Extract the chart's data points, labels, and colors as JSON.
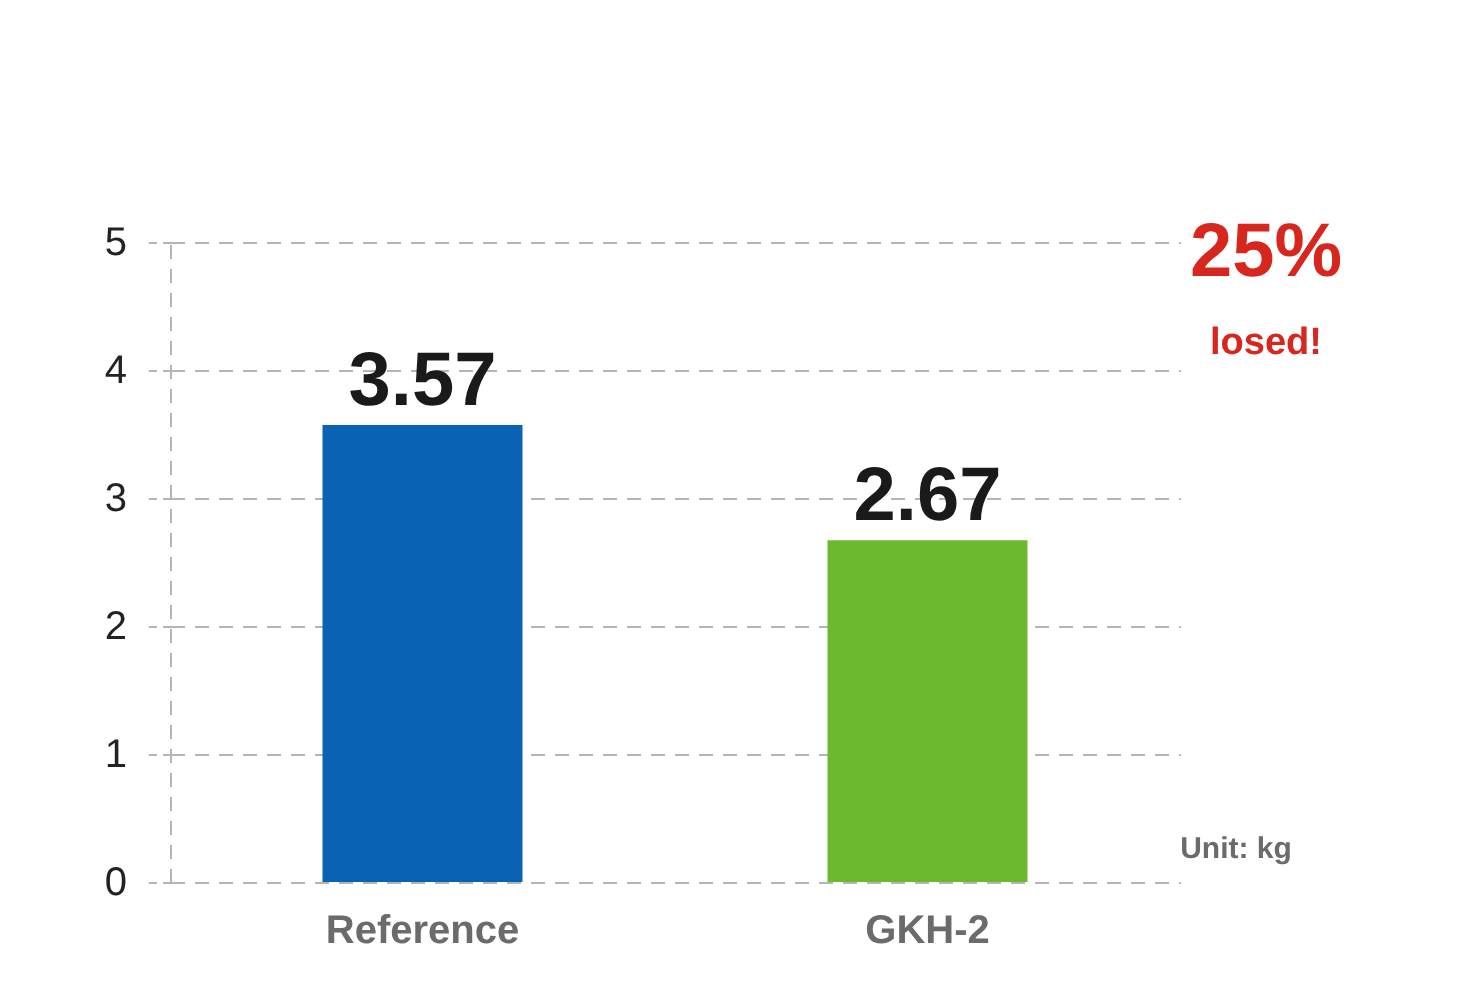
{
  "chart_data": {
    "type": "bar",
    "categories": [
      "Reference",
      "GKH-2"
    ],
    "values": [
      3.57,
      2.67
    ],
    "colors": [
      "#0a62b4",
      "#6cb92d"
    ],
    "ylim": [
      0,
      5
    ],
    "yticks": [
      0,
      1,
      2,
      3,
      4,
      5
    ],
    "grid": "y",
    "data_labels": true,
    "annotations": [
      "25%",
      "losed!",
      "Unit: kg"
    ]
  }
}
